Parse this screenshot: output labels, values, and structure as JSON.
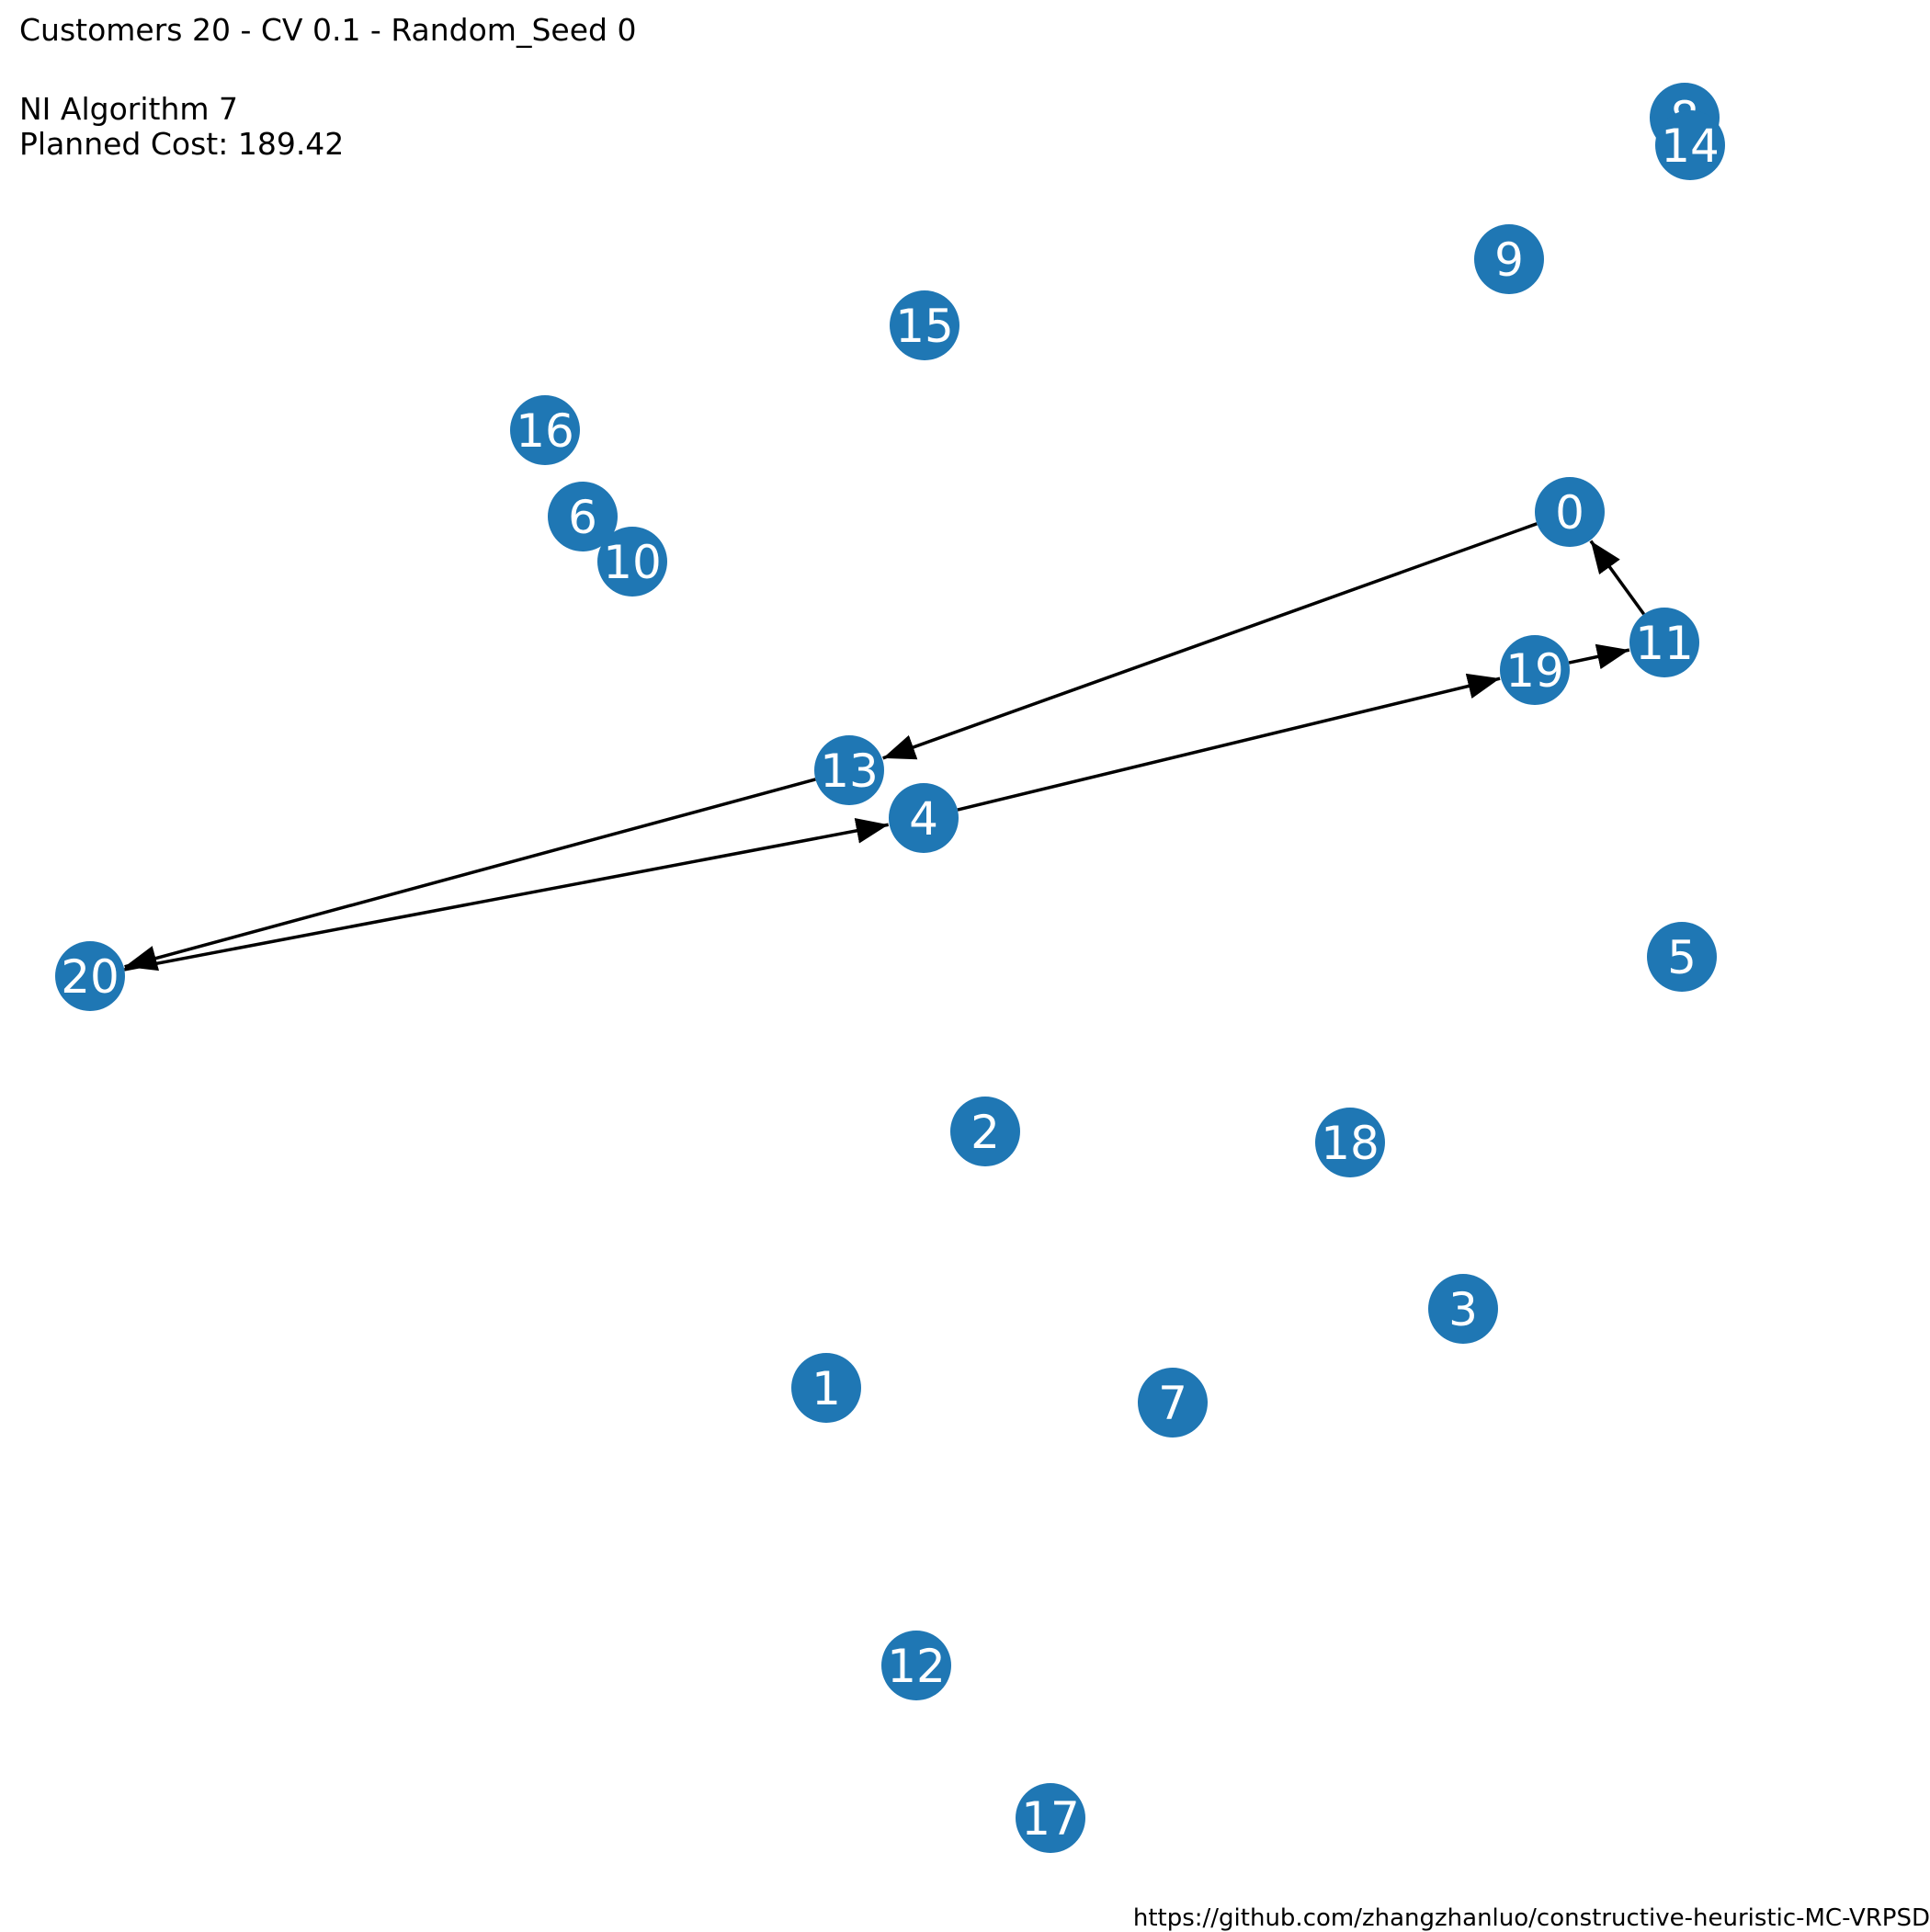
{
  "title": "Customers 20 - CV 0.1 - Random_Seed 0",
  "algorithm": "NI Algorithm 7",
  "planned_cost": "Planned Cost: 189.42",
  "credit": "https://github.com/zhangzhanluo/constructive-heuristic-MC-VRPSD",
  "colors": {
    "node": "#1f77b4",
    "label": "#ffffff",
    "edge": "#000000"
  },
  "nodes": [
    {
      "id": "0",
      "label": "0"
    },
    {
      "id": "1",
      "label": "1"
    },
    {
      "id": "2",
      "label": "2"
    },
    {
      "id": "3",
      "label": "3"
    },
    {
      "id": "4",
      "label": "4"
    },
    {
      "id": "5",
      "label": "5"
    },
    {
      "id": "6",
      "label": "6"
    },
    {
      "id": "7",
      "label": "7"
    },
    {
      "id": "8",
      "label": "8"
    },
    {
      "id": "9",
      "label": "9"
    },
    {
      "id": "10",
      "label": "10"
    },
    {
      "id": "11",
      "label": "11"
    },
    {
      "id": "12",
      "label": "12"
    },
    {
      "id": "13",
      "label": "13"
    },
    {
      "id": "14",
      "label": "14"
    },
    {
      "id": "15",
      "label": "15"
    },
    {
      "id": "16",
      "label": "16"
    },
    {
      "id": "17",
      "label": "17"
    },
    {
      "id": "18",
      "label": "18"
    },
    {
      "id": "19",
      "label": "19"
    },
    {
      "id": "20",
      "label": "20"
    }
  ],
  "edges": [
    {
      "from": "0",
      "to": "13"
    },
    {
      "from": "13",
      "to": "20"
    },
    {
      "from": "20",
      "to": "4"
    },
    {
      "from": "4",
      "to": "19"
    },
    {
      "from": "19",
      "to": "11"
    },
    {
      "from": "11",
      "to": "0"
    }
  ]
}
